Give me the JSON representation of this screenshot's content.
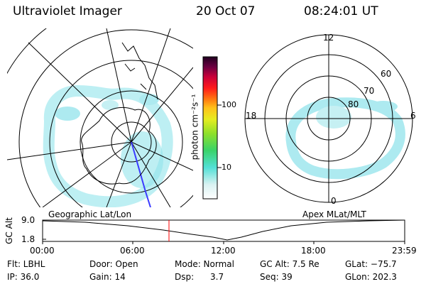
{
  "header": {
    "title": "Ultraviolet Imager",
    "date": "20 Oct 07",
    "time": "08:24:01 UT"
  },
  "colorbar": {
    "label": "photon cm⁻²s⁻¹",
    "ticks": [
      "100",
      "10"
    ]
  },
  "geo_panel": {
    "label": "Geographic Lat/Lon"
  },
  "apex_panel": {
    "label": "Apex MLat/MLT",
    "mlt_labels": [
      "12",
      "18",
      "6",
      "0"
    ],
    "lat_labels": [
      "60",
      "70",
      "80"
    ]
  },
  "altitude_plot": {
    "ylabel": "GC Alt",
    "yticks": [
      "9.0",
      "1.8"
    ],
    "xticks": [
      "00:00",
      "06:00",
      "12:00",
      "18:00",
      "23:59"
    ]
  },
  "info": {
    "filter": "Flt: LBHL",
    "ip": "IP: 36.0",
    "door": "Door: Open",
    "gain": "Gain: 14",
    "mode": "Mode: Normal",
    "dsp": "Dsp:      3.7",
    "gc_alt": "GC Alt: 7.5 Re",
    "seq": "Seq: 39",
    "glat": "GLat: −75.7",
    "glon": "GLon: 202.3"
  },
  "colors": {
    "aurora": "#9fe7ee",
    "aurora_dark": "#3fc9c9",
    "marker": "#ff0000",
    "track": "#3b3bff"
  }
}
